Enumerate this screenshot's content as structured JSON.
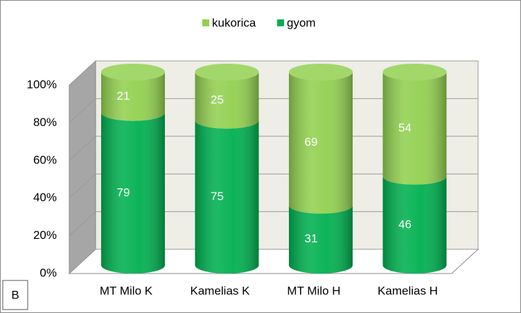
{
  "chart_data": {
    "type": "stacked-cylinder-100",
    "panel_label": "B",
    "categories": [
      "MT Milo K",
      "Kamelias K",
      "MT Milo H",
      "Kamelias H"
    ],
    "series": [
      {
        "name": "kukorica",
        "color": "#92d050",
        "values": [
          21,
          25,
          69,
          54
        ]
      },
      {
        "name": "gyom",
        "color": "#00b050",
        "values": [
          79,
          75,
          31,
          46
        ]
      }
    ],
    "ylim": [
      0,
      100
    ],
    "yticks": [
      {
        "value": 0,
        "label": "0%"
      },
      {
        "value": 20,
        "label": "20%"
      },
      {
        "value": 40,
        "label": "40%"
      },
      {
        "value": 60,
        "label": "60%"
      },
      {
        "value": 80,
        "label": "80%"
      },
      {
        "value": 100,
        "label": "100%"
      }
    ],
    "grid": true,
    "legend": "top"
  }
}
